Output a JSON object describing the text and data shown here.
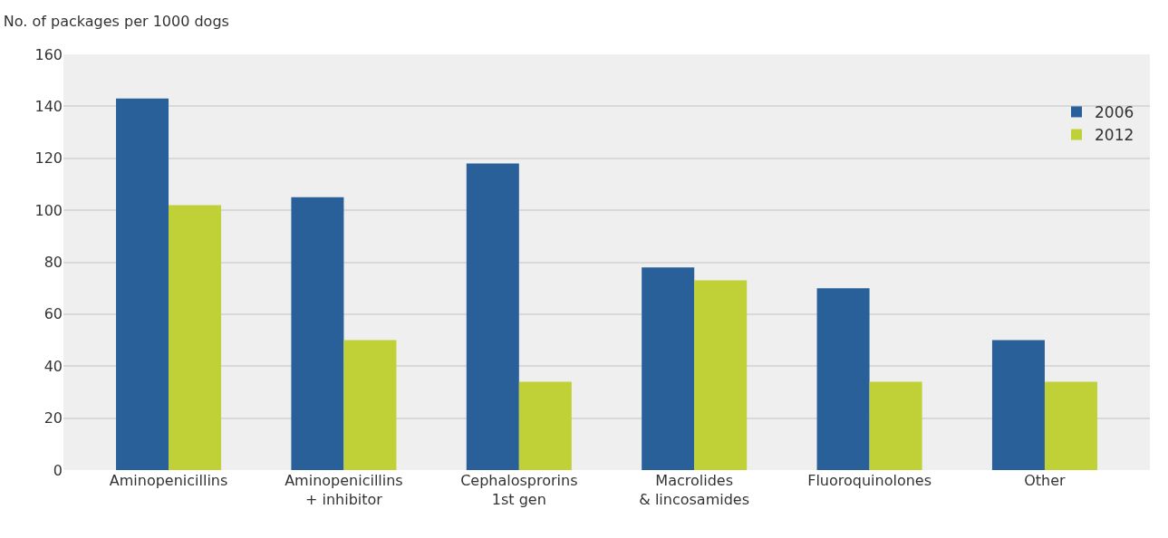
{
  "chart_data": {
    "type": "bar",
    "ylabel": "No. of packages per 1000 dogs",
    "categories": [
      "Aminopenicillins",
      "Aminopenicillins\n+ inhibitor",
      "Cephalosprorins\n1st gen",
      "Macrolides\n& lincosamides",
      "Fluoroquinolones",
      "Other"
    ],
    "series": [
      {
        "name": "2006",
        "color": "#2a6099",
        "values": [
          143,
          105,
          118,
          78,
          70,
          50
        ]
      },
      {
        "name": "2012",
        "color": "#bfd136",
        "values": [
          102,
          50,
          34,
          73,
          34,
          34
        ]
      }
    ],
    "ylim": [
      0,
      160
    ],
    "yticks": [
      0,
      20,
      40,
      60,
      80,
      100,
      120,
      140,
      160
    ],
    "grid": "y",
    "legend": "top right"
  }
}
